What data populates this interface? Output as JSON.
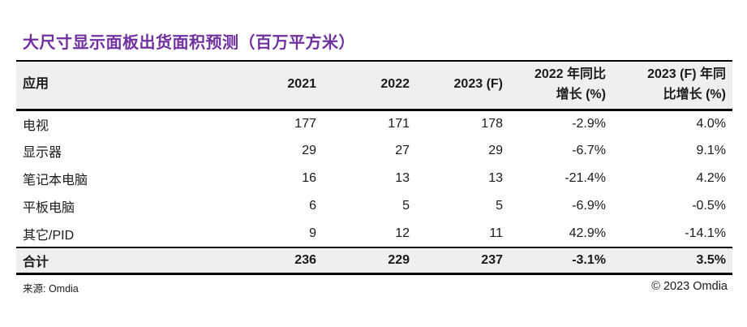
{
  "title": "大尺寸显示面板出货面积预测（百万平方米）",
  "colors": {
    "title_accent": "#7030A0",
    "band_gray": "#efefef",
    "border": "#000000"
  },
  "table": {
    "columns": [
      {
        "label": "应用"
      },
      {
        "label": "2021"
      },
      {
        "label": "2022"
      },
      {
        "label": "2023 (F)"
      },
      {
        "label": "2022 年同比\n增长 (%)"
      },
      {
        "label": "2023 (F) 年同\n比增长 (%)"
      }
    ],
    "rows": [
      {
        "app": "电视",
        "y2021": "177",
        "y2022": "171",
        "y2023f": "178",
        "yoy2022": "-2.9%",
        "yoy2023f": "4.0%"
      },
      {
        "app": "显示器",
        "y2021": "29",
        "y2022": "27",
        "y2023f": "29",
        "yoy2022": "-6.7%",
        "yoy2023f": "9.1%"
      },
      {
        "app": "笔记本电脑",
        "y2021": "16",
        "y2022": "13",
        "y2023f": "13",
        "yoy2022": "-21.4%",
        "yoy2023f": "4.2%"
      },
      {
        "app": "平板电脑",
        "y2021": "6",
        "y2022": "5",
        "y2023f": "5",
        "yoy2022": "-6.9%",
        "yoy2023f": "-0.5%"
      },
      {
        "app": "其它/PID",
        "y2021": "9",
        "y2022": "12",
        "y2023f": "11",
        "yoy2022": "42.9%",
        "yoy2023f": "-14.1%"
      }
    ],
    "total": {
      "app": "合计",
      "y2021": "236",
      "y2022": "229",
      "y2023f": "237",
      "yoy2022": "-3.1%",
      "yoy2023f": "3.5%"
    }
  },
  "footer": {
    "source": "来源: Omdia",
    "copyright": "© 2023 Omdia"
  },
  "chart_data": {
    "type": "table",
    "title": "大尺寸显示面板出货面积预测（百万平方米）",
    "categories": [
      "电视",
      "显示器",
      "笔记本电脑",
      "平板电脑",
      "其它/PID",
      "合计"
    ],
    "series": [
      {
        "name": "2021",
        "values": [
          177,
          29,
          16,
          6,
          9,
          236
        ]
      },
      {
        "name": "2022",
        "values": [
          171,
          27,
          13,
          5,
          12,
          229
        ]
      },
      {
        "name": "2023 (F)",
        "values": [
          178,
          29,
          13,
          5,
          11,
          237
        ]
      },
      {
        "name": "2022 年同比增长 (%)",
        "values": [
          -2.9,
          -6.7,
          -21.4,
          -6.9,
          42.9,
          -3.1
        ]
      },
      {
        "name": "2023 (F) 年同比增长 (%)",
        "values": [
          4.0,
          9.1,
          4.2,
          -0.5,
          -14.1,
          3.5
        ]
      }
    ],
    "source": "Omdia"
  }
}
